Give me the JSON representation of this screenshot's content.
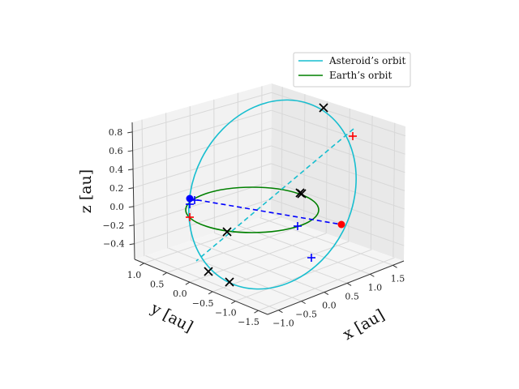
{
  "chart_data": {
    "type": "line",
    "projection": "3d",
    "xlabel": "x [au]",
    "ylabel": "y [au]",
    "zlabel": "z [au]",
    "xlim": [
      -1.6,
      1.6
    ],
    "ylim": [
      -1.6,
      1.2
    ],
    "zlim": [
      -0.5,
      0.9
    ],
    "x_ticks": [
      "−1.0",
      "−0.5",
      "0.0",
      "0.5",
      "1.0",
      "1.5"
    ],
    "y_ticks": [
      "1.0",
      "0.5",
      "0.0",
      "−0.5",
      "−1.0",
      "−1.5"
    ],
    "z_ticks": [
      "0.8",
      "0.6",
      "0.4",
      "0.2",
      "0.0",
      "−0.2",
      "−0.4"
    ],
    "grid": true,
    "legend_placement": "top-right",
    "series": [
      {
        "name": "Asteroid’s orbit",
        "color": "#17becf",
        "kind": "ellipse"
      },
      {
        "name": "Earth’s orbit",
        "color": "#008000",
        "kind": "circle"
      }
    ],
    "markers": {
      "asteroid_dashed_line_color": "#17becf",
      "earth_dashed_line_color": "#0000ff",
      "x_marker_color": "#000000",
      "plus_red_color": "#ff0000",
      "plus_blue_color": "#0000ff",
      "sun_color": "#ff0000",
      "earth_color": "#0000ff"
    }
  }
}
